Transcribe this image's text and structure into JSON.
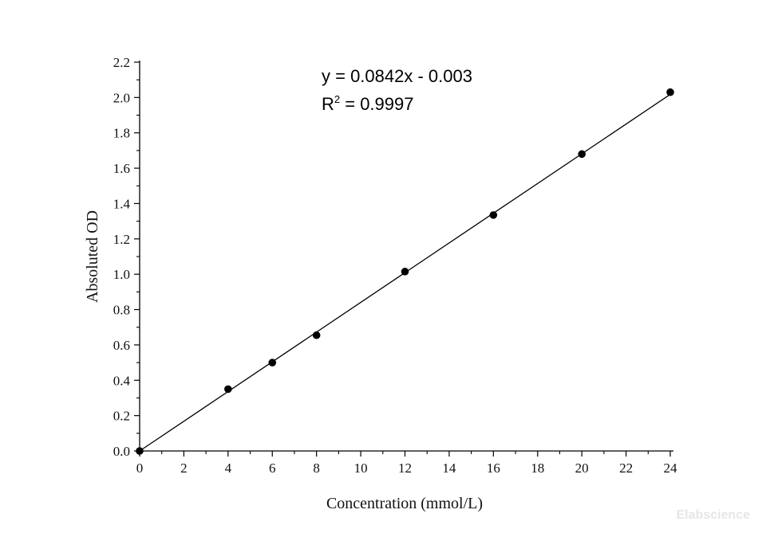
{
  "chart_data": {
    "type": "scatter",
    "xlabel": "Concentration (mmol/L)",
    "ylabel": "Absoluted OD",
    "xlim": [
      0,
      24
    ],
    "ylim": [
      0,
      2.2
    ],
    "x_ticks": [
      "0",
      "2",
      "4",
      "6",
      "8",
      "10",
      "12",
      "14",
      "16",
      "18",
      "20",
      "22",
      "24"
    ],
    "y_ticks": [
      "0.0",
      "0.2",
      "0.4",
      "0.6",
      "0.8",
      "1.0",
      "1.2",
      "1.4",
      "1.6",
      "1.8",
      "2.0",
      "2.2"
    ],
    "series": [
      {
        "x": [
          0,
          4,
          6,
          8,
          12,
          16,
          20,
          24
        ],
        "y": [
          0.0,
          0.35,
          0.5,
          0.655,
          1.015,
          1.335,
          1.68,
          2.03
        ]
      }
    ],
    "fit": {
      "slope": 0.0842,
      "intercept": -0.003,
      "equation": "y = 0.0842x - 0.003",
      "r2_prefix": "R",
      "r2_exp": "2",
      "r2_value": " = 0.9997"
    },
    "grid": false
  },
  "watermark": "Elabscience"
}
